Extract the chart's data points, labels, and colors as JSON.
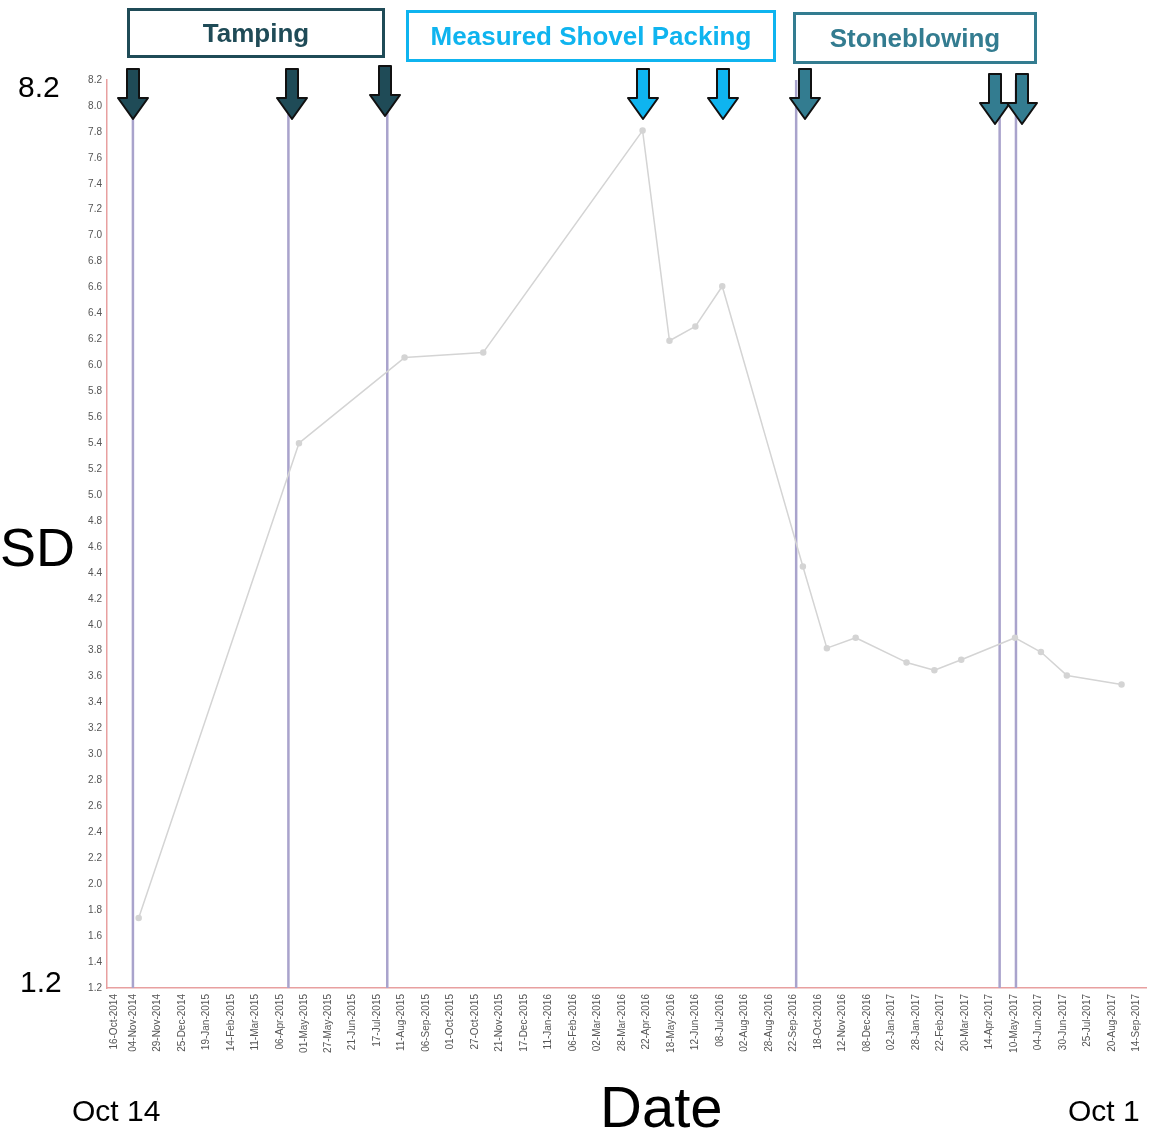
{
  "chart_data": {
    "type": "line",
    "xlabel": "Date",
    "ylabel": "SD",
    "x": [
      "2014-11-10",
      "2015-04-26",
      "2015-08-14",
      "2015-11-04",
      "2016-04-18",
      "2016-05-16",
      "2016-06-12",
      "2016-07-10",
      "2016-10-02",
      "2016-10-27",
      "2016-11-26",
      "2017-01-18",
      "2017-02-16",
      "2017-03-16",
      "2017-05-11",
      "2017-06-07",
      "2017-07-04",
      "2017-08-30"
    ],
    "series": [
      {
        "color": "#d4d4d4",
        "values": [
          1.74,
          5.4,
          6.06,
          6.1,
          7.81,
          6.19,
          6.3,
          6.61,
          4.45,
          3.82,
          3.9,
          3.71,
          3.65,
          3.73,
          3.9,
          3.79,
          3.61,
          3.54
        ]
      }
    ],
    "marker": "circle",
    "legend": false,
    "ylim": [
      1.2,
      8.2
    ],
    "yticks": [
      1.2,
      1.4,
      1.6,
      1.8,
      {
        "value": 2,
        "label": "2.0"
      },
      2.2,
      2.4,
      2.6,
      2.8,
      {
        "value": 3,
        "label": "3.0"
      },
      3.2,
      3.4,
      3.6,
      3.8,
      {
        "value": 4,
        "label": "4.0"
      },
      4.2,
      4.4,
      4.6,
      4.8,
      {
        "value": 5,
        "label": "5.0"
      },
      5.2,
      5.4,
      5.6,
      5.8,
      {
        "value": 6,
        "label": "6.0"
      },
      6.2,
      6.4,
      6.6,
      6.8,
      {
        "value": 7,
        "label": "7.0"
      },
      7.2,
      7.4,
      7.6,
      7.8,
      {
        "value": 8,
        "label": "8.0"
      },
      8.2
    ],
    "xlim": [
      "2014-10-08",
      "2017-09-25"
    ],
    "xticks": [
      {
        "value": "2014-10-16",
        "label": "16-Oct-2014"
      },
      {
        "value": "2014-11-04",
        "label": "04-Nov-2014"
      },
      {
        "value": "2014-11-29",
        "label": "29-Nov-2014"
      },
      {
        "value": "2014-12-25",
        "label": "25-Dec-2014"
      },
      {
        "value": "2015-01-19",
        "label": "19-Jan-2015"
      },
      {
        "value": "2015-02-14",
        "label": "14-Feb-2015"
      },
      {
        "value": "2015-03-11",
        "label": "11-Mar-2015"
      },
      {
        "value": "2015-04-06",
        "label": "06-Apr-2015"
      },
      {
        "value": "2015-05-01",
        "label": "01-May-2015"
      },
      {
        "value": "2015-05-27",
        "label": "27-May-2015"
      },
      {
        "value": "2015-06-21",
        "label": "21-Jun-2015"
      },
      {
        "value": "2015-07-17",
        "label": "17-Jul-2015"
      },
      {
        "value": "2015-08-11",
        "label": "11-Aug-2015"
      },
      {
        "value": "2015-09-06",
        "label": "06-Sep-2015"
      },
      {
        "value": "2015-10-01",
        "label": "01-Oct-2015"
      },
      {
        "value": "2015-10-27",
        "label": "27-Oct-2015"
      },
      {
        "value": "2015-11-21",
        "label": "21-Nov-2015"
      },
      {
        "value": "2015-12-17",
        "label": "17-Dec-2015"
      },
      {
        "value": "2016-01-11",
        "label": "11-Jan-2016"
      },
      {
        "value": "2016-02-06",
        "label": "06-Feb-2016"
      },
      {
        "value": "2016-03-02",
        "label": "02-Mar-2016"
      },
      {
        "value": "2016-03-28",
        "label": "28-Mar-2016"
      },
      {
        "value": "2016-04-22",
        "label": "22-Apr-2016"
      },
      {
        "value": "2016-05-18",
        "label": "18-May-2016"
      },
      {
        "value": "2016-06-12",
        "label": "12-Jun-2016"
      },
      {
        "value": "2016-07-08",
        "label": "08-Jul-2016"
      },
      {
        "value": "2016-08-02",
        "label": "02-Aug-2016"
      },
      {
        "value": "2016-08-28",
        "label": "28-Aug-2016"
      },
      {
        "value": "2016-09-22",
        "label": "22-Sep-2016"
      },
      {
        "value": "2016-10-18",
        "label": "18-Oct-2016"
      },
      {
        "value": "2016-11-12",
        "label": "12-Nov-2016"
      },
      {
        "value": "2016-12-08",
        "label": "08-Dec-2016"
      },
      {
        "value": "2017-01-02",
        "label": "02-Jan-2017"
      },
      {
        "value": "2017-01-28",
        "label": "28-Jan-2017"
      },
      {
        "value": "2017-02-22",
        "label": "22-Feb-2017"
      },
      {
        "value": "2017-03-20",
        "label": "20-Mar-2017"
      },
      {
        "value": "2017-04-14",
        "label": "14-Apr-2017"
      },
      {
        "value": "2017-05-10",
        "label": "10-May-2017"
      },
      {
        "value": "2017-06-04",
        "label": "04-Jun-2017"
      },
      {
        "value": "2017-06-30",
        "label": "30-Jun-2017"
      },
      {
        "value": "2017-07-25",
        "label": "25-Jul-2017"
      },
      {
        "value": "2017-08-20",
        "label": "20-Aug-2017"
      },
      {
        "value": "2017-09-14",
        "label": "14-Sep-2017"
      }
    ],
    "ref_lines": [
      {
        "axis": "x",
        "value": "2014-11-04",
        "color": "#a9a3cc"
      },
      {
        "axis": "x",
        "value": "2015-04-15",
        "color": "#a9a3cc"
      },
      {
        "axis": "x",
        "value": "2015-07-27",
        "color": "#a9a3cc"
      },
      {
        "axis": "x",
        "value": "2016-09-25",
        "color": "#a9a3cc"
      },
      {
        "axis": "x",
        "value": "2017-04-25",
        "color": "#a9a3cc"
      },
      {
        "axis": "x",
        "value": "2017-05-12",
        "color": "#a9a3cc"
      }
    ],
    "annotations": [
      "Tamping",
      "Measured Shovel Packing",
      "Stoneblowing",
      "8.2",
      "1.2",
      "Oct 14",
      "Oct 1"
    ]
  }
}
